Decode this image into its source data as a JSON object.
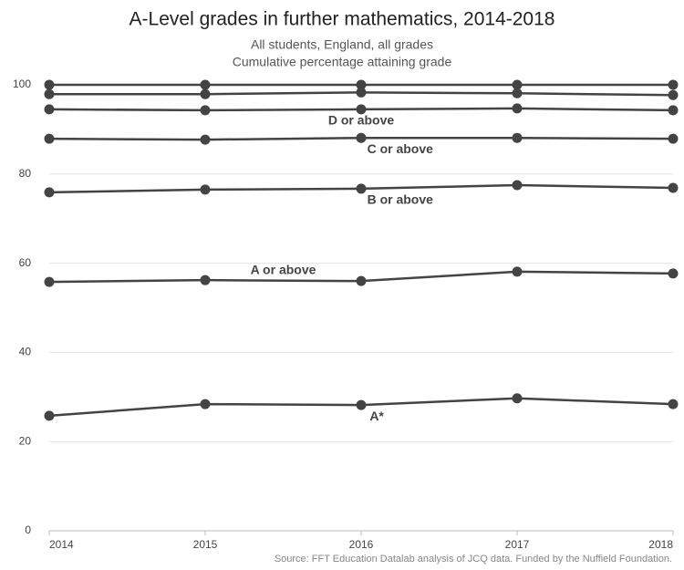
{
  "chart_data": {
    "type": "line",
    "title": "A-Level grades in further mathematics, 2014-2018",
    "subtitle": [
      "All students, England, all grades",
      "Cumulative percentage attaining grade"
    ],
    "source": "Source: FFT Education Datalab analysis of JCQ data. Funded by the Nuffield Foundation.",
    "categories": [
      "2014",
      "2015",
      "2016",
      "2017",
      "2018"
    ],
    "ylim": [
      0,
      100
    ],
    "yticks": [
      0,
      20,
      40,
      60,
      80,
      100
    ],
    "grid": true,
    "series": [
      {
        "color": "#444444",
        "values": [
          100,
          100,
          100,
          100,
          100
        ]
      },
      {
        "color": "#444444",
        "values": [
          97.9,
          97.9,
          98.3,
          98.1,
          97.7
        ]
      },
      {
        "name": "D or above",
        "color": "#444444",
        "values": [
          94.5,
          94.3,
          94.5,
          94.7,
          94.3
        ]
      },
      {
        "name": "C or above",
        "color": "#444444",
        "values": [
          87.9,
          87.7,
          88.1,
          88.1,
          87.9
        ]
      },
      {
        "name": "B or above",
        "color": "#444444",
        "values": [
          75.9,
          76.5,
          76.7,
          77.5,
          76.9
        ]
      },
      {
        "name": "A or above",
        "color": "#444444",
        "values": [
          55.8,
          56.2,
          56.0,
          58.1,
          57.7
        ]
      },
      {
        "name": "A*",
        "color": "#444444",
        "values": [
          25.8,
          28.4,
          28.2,
          29.7,
          28.4
        ]
      }
    ]
  }
}
